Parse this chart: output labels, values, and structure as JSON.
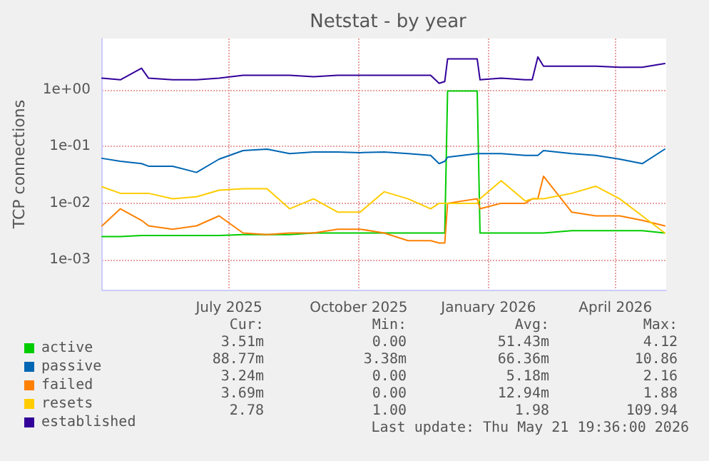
{
  "chart_data": {
    "type": "line",
    "title": "Netstat - by year",
    "ylabel": "TCP connections",
    "x": [
      "2025-04-02",
      "2025-04-15",
      "2025-04-30",
      "2025-05-05",
      "2025-05-22",
      "2025-06-08",
      "2025-06-24",
      "2025-07-11",
      "2025-07-28",
      "2025-08-13",
      "2025-08-30",
      "2025-09-16",
      "2025-10-02",
      "2025-10-19",
      "2025-11-05",
      "2025-11-21",
      "2025-11-27",
      "2025-12-01",
      "2025-12-03",
      "2025-12-24",
      "2025-12-26",
      "2026-01-10",
      "2026-01-27",
      "2026-02-01",
      "2026-02-05",
      "2026-02-09",
      "2026-03-01",
      "2026-03-18",
      "2026-04-04",
      "2026-04-20",
      "2026-05-06"
    ],
    "series": [
      {
        "name": "active",
        "color": "#00cc00",
        "values": [
          0.0026,
          0.0026,
          0.0027,
          0.0027,
          0.0027,
          0.0027,
          0.0027,
          0.0028,
          0.0028,
          0.0028,
          0.003,
          0.003,
          0.003,
          0.003,
          0.003,
          0.003,
          0.003,
          0.003,
          0.95,
          0.95,
          0.003,
          0.003,
          0.003,
          0.003,
          0.003,
          0.003,
          0.0033,
          0.0033,
          0.0033,
          0.0033,
          0.003
        ]
      },
      {
        "name": "passive",
        "color": "#0066b3",
        "values": [
          0.062,
          0.055,
          0.05,
          0.045,
          0.045,
          0.035,
          0.06,
          0.085,
          0.09,
          0.075,
          0.08,
          0.08,
          0.078,
          0.08,
          0.075,
          0.07,
          0.05,
          0.055,
          0.065,
          0.075,
          0.075,
          0.075,
          0.07,
          0.07,
          0.07,
          0.085,
          0.075,
          0.07,
          0.06,
          0.05,
          0.09
        ]
      },
      {
        "name": "failed",
        "color": "#ff8000",
        "values": [
          0.004,
          0.008,
          0.005,
          0.004,
          0.0035,
          0.004,
          0.006,
          0.003,
          0.0028,
          0.003,
          0.003,
          0.0035,
          0.0035,
          0.003,
          0.0022,
          0.0022,
          0.002,
          0.002,
          0.01,
          0.012,
          0.008,
          0.01,
          0.01,
          0.012,
          0.012,
          0.03,
          0.007,
          0.006,
          0.006,
          0.005,
          0.004
        ]
      },
      {
        "name": "resets",
        "color": "#ffcc00",
        "values": [
          0.0195,
          0.015,
          0.015,
          0.015,
          0.012,
          0.013,
          0.017,
          0.018,
          0.018,
          0.008,
          0.012,
          0.007,
          0.007,
          0.016,
          0.012,
          0.008,
          0.01,
          0.01,
          0.01,
          0.01,
          0.012,
          0.025,
          0.011,
          0.012,
          0.012,
          0.012,
          0.015,
          0.02,
          0.012,
          0.006,
          0.003
        ]
      },
      {
        "name": "established",
        "color": "#330099",
        "values": [
          1.6,
          1.5,
          2.4,
          1.6,
          1.5,
          1.5,
          1.6,
          1.8,
          1.8,
          1.8,
          1.7,
          1.8,
          1.8,
          1.8,
          1.8,
          1.8,
          1.3,
          1.4,
          3.5,
          3.5,
          1.5,
          1.6,
          1.5,
          1.5,
          3.8,
          2.6,
          2.6,
          2.6,
          2.5,
          2.5,
          2.9
        ]
      }
    ],
    "xlim": [
      "2025-04-02",
      "2026-05-07"
    ],
    "xticks": [
      {
        "value": "2025-07-01",
        "label": "July 2025"
      },
      {
        "value": "2025-10-01",
        "label": "October 2025"
      },
      {
        "value": "2026-01-01",
        "label": "January 2026"
      },
      {
        "value": "2026-04-01",
        "label": "April 2026"
      }
    ],
    "ylim": [
      0.0003,
      8
    ],
    "yticks": [
      {
        "value": 0.001,
        "label": "1e-03"
      },
      {
        "value": 0.01,
        "label": "1e-02"
      },
      {
        "value": 0.1,
        "label": "1e-01"
      },
      {
        "value": 1,
        "label": "1e+00"
      }
    ],
    "log": "y",
    "grid": true,
    "legend": "bottom",
    "marker": "none",
    "line_style": "solid",
    "annotations": [
      "Cur:",
      "Min:",
      "Avg:",
      "Max:",
      "3.51m",
      "0.00",
      "51.43m",
      "4.12",
      "88.77m",
      "3.38m",
      "66.36m",
      "10.86",
      "3.24m",
      "0.00",
      "5.18m",
      "2.16",
      "3.69m",
      "0.00",
      "12.94m",
      "1.88",
      "2.78",
      "1.00",
      "1.98",
      "109.94",
      "Last update: Thu May 21 19:36:00 2026"
    ]
  }
}
